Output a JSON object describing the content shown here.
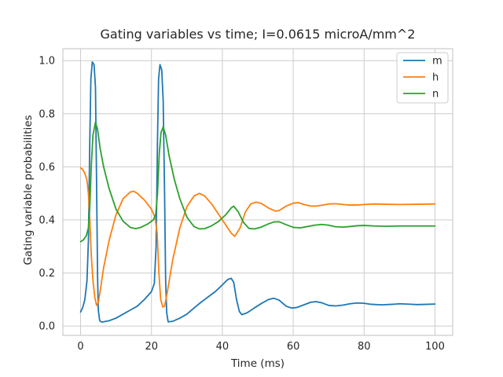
{
  "chart_data": {
    "type": "line",
    "title": "Gating variables vs time; I=0.0615 microA/mm^2",
    "xlabel": "Time (ms)",
    "ylabel": "Gating variable probabilities",
    "xlim": [
      -5,
      105
    ],
    "ylim": [
      -0.035,
      1.045
    ],
    "x_ticks": [
      0,
      20,
      40,
      60,
      80,
      100
    ],
    "x_tick_labels": [
      "0",
      "20",
      "40",
      "60",
      "80",
      "100"
    ],
    "y_ticks": [
      0.0,
      0.2,
      0.4,
      0.6,
      0.8,
      1.0
    ],
    "y_tick_labels": [
      "0.0",
      "0.2",
      "0.4",
      "0.6",
      "0.8",
      "1.0"
    ],
    "grid": true,
    "legend_position": "top-right",
    "series": [
      {
        "name": "m",
        "color": "#1f77b4",
        "points": [
          [
            0,
            0.053
          ],
          [
            0.6,
            0.07
          ],
          [
            1.2,
            0.1
          ],
          [
            1.8,
            0.17
          ],
          [
            2.2,
            0.32
          ],
          [
            2.6,
            0.7
          ],
          [
            2.9,
            0.93
          ],
          [
            3.3,
            0.995
          ],
          [
            3.8,
            0.985
          ],
          [
            4.2,
            0.9
          ],
          [
            4.5,
            0.55
          ],
          [
            4.8,
            0.18
          ],
          [
            5,
            0.06
          ],
          [
            5.4,
            0.02
          ],
          [
            6,
            0.015
          ],
          [
            8,
            0.02
          ],
          [
            10,
            0.03
          ],
          [
            12,
            0.045
          ],
          [
            14,
            0.06
          ],
          [
            16,
            0.075
          ],
          [
            18,
            0.1
          ],
          [
            20,
            0.13
          ],
          [
            20.8,
            0.16
          ],
          [
            21.3,
            0.3
          ],
          [
            21.7,
            0.7
          ],
          [
            22,
            0.93
          ],
          [
            22.4,
            0.985
          ],
          [
            22.9,
            0.965
          ],
          [
            23.3,
            0.85
          ],
          [
            23.7,
            0.5
          ],
          [
            24,
            0.17
          ],
          [
            24.3,
            0.05
          ],
          [
            24.7,
            0.016
          ],
          [
            26,
            0.018
          ],
          [
            28,
            0.03
          ],
          [
            30,
            0.045
          ],
          [
            32,
            0.068
          ],
          [
            34,
            0.09
          ],
          [
            36,
            0.11
          ],
          [
            38,
            0.13
          ],
          [
            40,
            0.155
          ],
          [
            41.5,
            0.175
          ],
          [
            42.5,
            0.18
          ],
          [
            43.2,
            0.165
          ],
          [
            44,
            0.1
          ],
          [
            44.8,
            0.055
          ],
          [
            45.5,
            0.043
          ],
          [
            47,
            0.05
          ],
          [
            49,
            0.068
          ],
          [
            51,
            0.085
          ],
          [
            53,
            0.1
          ],
          [
            54.5,
            0.105
          ],
          [
            56,
            0.098
          ],
          [
            58,
            0.075
          ],
          [
            59.5,
            0.068
          ],
          [
            61,
            0.07
          ],
          [
            63,
            0.08
          ],
          [
            65,
            0.09
          ],
          [
            66.5,
            0.092
          ],
          [
            68,
            0.088
          ],
          [
            70,
            0.078
          ],
          [
            72,
            0.076
          ],
          [
            74,
            0.079
          ],
          [
            76,
            0.084
          ],
          [
            78,
            0.087
          ],
          [
            80,
            0.086
          ],
          [
            82,
            0.082
          ],
          [
            85,
            0.08
          ],
          [
            88,
            0.082
          ],
          [
            90,
            0.084
          ],
          [
            92,
            0.083
          ],
          [
            95,
            0.081
          ],
          [
            98,
            0.082
          ],
          [
            100,
            0.083
          ]
        ]
      },
      {
        "name": "h",
        "color": "#ff7f0e",
        "points": [
          [
            0,
            0.596
          ],
          [
            0.6,
            0.59
          ],
          [
            1.2,
            0.575
          ],
          [
            1.8,
            0.55
          ],
          [
            2.2,
            0.5
          ],
          [
            2.6,
            0.4
          ],
          [
            3,
            0.27
          ],
          [
            3.5,
            0.17
          ],
          [
            4,
            0.11
          ],
          [
            4.5,
            0.078
          ],
          [
            5,
            0.09
          ],
          [
            5.5,
            0.13
          ],
          [
            6.5,
            0.22
          ],
          [
            8,
            0.32
          ],
          [
            10,
            0.42
          ],
          [
            12,
            0.48
          ],
          [
            14,
            0.505
          ],
          [
            15,
            0.508
          ],
          [
            16,
            0.5
          ],
          [
            18,
            0.475
          ],
          [
            20,
            0.44
          ],
          [
            21,
            0.41
          ],
          [
            21.6,
            0.35
          ],
          [
            22.1,
            0.2
          ],
          [
            22.6,
            0.1
          ],
          [
            23.2,
            0.072
          ],
          [
            23.7,
            0.075
          ],
          [
            24.5,
            0.13
          ],
          [
            26,
            0.25
          ],
          [
            28,
            0.37
          ],
          [
            30,
            0.45
          ],
          [
            32,
            0.49
          ],
          [
            33.5,
            0.5
          ],
          [
            35,
            0.49
          ],
          [
            37,
            0.46
          ],
          [
            39,
            0.42
          ],
          [
            41,
            0.38
          ],
          [
            42.5,
            0.35
          ],
          [
            43.5,
            0.338
          ],
          [
            45,
            0.37
          ],
          [
            46.5,
            0.43
          ],
          [
            48,
            0.46
          ],
          [
            49.5,
            0.467
          ],
          [
            51,
            0.462
          ],
          [
            53,
            0.445
          ],
          [
            55,
            0.433
          ],
          [
            56,
            0.435
          ],
          [
            58,
            0.452
          ],
          [
            60,
            0.463
          ],
          [
            61.5,
            0.465
          ],
          [
            63,
            0.458
          ],
          [
            65,
            0.452
          ],
          [
            66.5,
            0.452
          ],
          [
            68,
            0.455
          ],
          [
            70,
            0.46
          ],
          [
            72,
            0.461
          ],
          [
            74,
            0.458
          ],
          [
            76,
            0.456
          ],
          [
            78,
            0.456
          ],
          [
            80,
            0.458
          ],
          [
            83,
            0.46
          ],
          [
            86,
            0.459
          ],
          [
            90,
            0.458
          ],
          [
            95,
            0.459
          ],
          [
            100,
            0.46
          ]
        ]
      },
      {
        "name": "n",
        "color": "#2ca02c",
        "points": [
          [
            0,
            0.318
          ],
          [
            0.8,
            0.325
          ],
          [
            1.6,
            0.34
          ],
          [
            2.2,
            0.37
          ],
          [
            2.6,
            0.45
          ],
          [
            3,
            0.6
          ],
          [
            3.5,
            0.72
          ],
          [
            4.2,
            0.768
          ],
          [
            4.8,
            0.74
          ],
          [
            5.5,
            0.67
          ],
          [
            6.5,
            0.6
          ],
          [
            8,
            0.52
          ],
          [
            10,
            0.44
          ],
          [
            12,
            0.395
          ],
          [
            14,
            0.372
          ],
          [
            15.5,
            0.367
          ],
          [
            17,
            0.372
          ],
          [
            19,
            0.385
          ],
          [
            20.5,
            0.4
          ],
          [
            21.2,
            0.42
          ],
          [
            21.7,
            0.5
          ],
          [
            22.2,
            0.65
          ],
          [
            22.7,
            0.73
          ],
          [
            23.3,
            0.75
          ],
          [
            24,
            0.72
          ],
          [
            25,
            0.64
          ],
          [
            26.5,
            0.55
          ],
          [
            28,
            0.48
          ],
          [
            30,
            0.41
          ],
          [
            32,
            0.375
          ],
          [
            33.5,
            0.366
          ],
          [
            35,
            0.367
          ],
          [
            37,
            0.378
          ],
          [
            39,
            0.395
          ],
          [
            41,
            0.42
          ],
          [
            42.5,
            0.445
          ],
          [
            43.2,
            0.452
          ],
          [
            44.5,
            0.43
          ],
          [
            46,
            0.39
          ],
          [
            47.5,
            0.368
          ],
          [
            49,
            0.366
          ],
          [
            51,
            0.373
          ],
          [
            53,
            0.385
          ],
          [
            54.5,
            0.392
          ],
          [
            56,
            0.393
          ],
          [
            58,
            0.382
          ],
          [
            60,
            0.372
          ],
          [
            62,
            0.37
          ],
          [
            64,
            0.375
          ],
          [
            66,
            0.38
          ],
          [
            68,
            0.383
          ],
          [
            70,
            0.38
          ],
          [
            72,
            0.374
          ],
          [
            74,
            0.373
          ],
          [
            76,
            0.375
          ],
          [
            78,
            0.378
          ],
          [
            80,
            0.379
          ],
          [
            83,
            0.377
          ],
          [
            86,
            0.376
          ],
          [
            90,
            0.377
          ],
          [
            95,
            0.377
          ],
          [
            100,
            0.377
          ]
        ]
      }
    ]
  }
}
